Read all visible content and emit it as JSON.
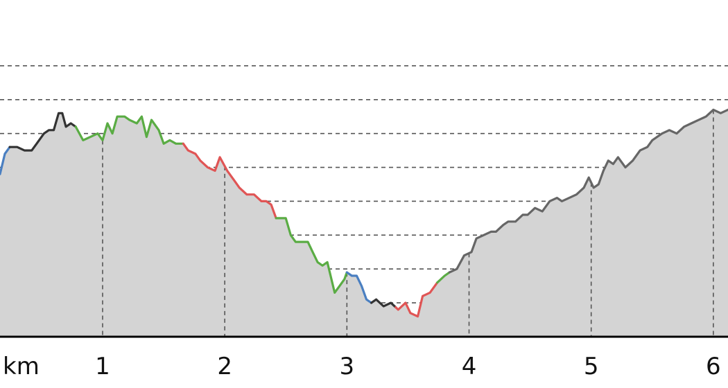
{
  "chart_data": {
    "type": "area",
    "xlabel": "km",
    "xticks": [
      1,
      2,
      3,
      4,
      5,
      6
    ],
    "xlim": [
      0.16,
      6.12
    ],
    "ylim": [
      0,
      8.1
    ],
    "grid": true,
    "colors": {
      "blue": "#4a7fc1",
      "black": "#333333",
      "green": "#5aac44",
      "red": "#e05555",
      "gray": "#666666",
      "fill": "#d4d4d4"
    },
    "profile": [
      [
        0.16,
        4.8
      ],
      [
        0.2,
        5.4
      ],
      [
        0.24,
        5.6
      ],
      [
        0.3,
        5.6
      ],
      [
        0.36,
        5.5
      ],
      [
        0.42,
        5.5
      ],
      [
        0.46,
        5.7
      ],
      [
        0.52,
        6.0
      ],
      [
        0.56,
        6.1
      ],
      [
        0.6,
        6.1
      ],
      [
        0.64,
        6.6
      ],
      [
        0.67,
        6.6
      ],
      [
        0.7,
        6.2
      ],
      [
        0.74,
        6.3
      ],
      [
        0.78,
        6.2
      ],
      [
        0.84,
        5.8
      ],
      [
        0.9,
        5.9
      ],
      [
        0.96,
        6.0
      ],
      [
        1.0,
        5.8
      ],
      [
        1.04,
        6.3
      ],
      [
        1.08,
        6.0
      ],
      [
        1.12,
        6.5
      ],
      [
        1.18,
        6.5
      ],
      [
        1.22,
        6.4
      ],
      [
        1.28,
        6.3
      ],
      [
        1.32,
        6.5
      ],
      [
        1.36,
        5.9
      ],
      [
        1.4,
        6.4
      ],
      [
        1.46,
        6.1
      ],
      [
        1.5,
        5.7
      ],
      [
        1.55,
        5.8
      ],
      [
        1.6,
        5.7
      ],
      [
        1.66,
        5.7
      ],
      [
        1.7,
        5.5
      ],
      [
        1.76,
        5.4
      ],
      [
        1.8,
        5.2
      ],
      [
        1.86,
        5.0
      ],
      [
        1.92,
        4.9
      ],
      [
        1.96,
        5.3
      ],
      [
        2.02,
        4.9
      ],
      [
        2.08,
        4.6
      ],
      [
        2.12,
        4.4
      ],
      [
        2.18,
        4.2
      ],
      [
        2.24,
        4.2
      ],
      [
        2.3,
        4.0
      ],
      [
        2.34,
        4.0
      ],
      [
        2.38,
        3.9
      ],
      [
        2.42,
        3.5
      ],
      [
        2.5,
        3.5
      ],
      [
        2.54,
        3.0
      ],
      [
        2.58,
        2.8
      ],
      [
        2.64,
        2.8
      ],
      [
        2.68,
        2.8
      ],
      [
        2.72,
        2.5
      ],
      [
        2.76,
        2.2
      ],
      [
        2.8,
        2.1
      ],
      [
        2.84,
        2.2
      ],
      [
        2.9,
        1.3
      ],
      [
        2.94,
        1.5
      ],
      [
        2.98,
        1.7
      ],
      [
        3.0,
        1.9
      ],
      [
        3.04,
        1.8
      ],
      [
        3.08,
        1.8
      ],
      [
        3.12,
        1.5
      ],
      [
        3.16,
        1.1
      ],
      [
        3.2,
        1.0
      ],
      [
        3.24,
        1.1
      ],
      [
        3.3,
        0.9
      ],
      [
        3.36,
        1.0
      ],
      [
        3.42,
        0.8
      ],
      [
        3.48,
        1.0
      ],
      [
        3.52,
        0.7
      ],
      [
        3.58,
        0.6
      ],
      [
        3.62,
        1.2
      ],
      [
        3.68,
        1.3
      ],
      [
        3.74,
        1.6
      ],
      [
        3.8,
        1.8
      ],
      [
        3.84,
        1.9
      ],
      [
        3.9,
        2.0
      ],
      [
        3.96,
        2.4
      ],
      [
        4.02,
        2.5
      ],
      [
        4.06,
        2.9
      ],
      [
        4.12,
        3.0
      ],
      [
        4.18,
        3.1
      ],
      [
        4.22,
        3.1
      ],
      [
        4.28,
        3.3
      ],
      [
        4.32,
        3.4
      ],
      [
        4.38,
        3.4
      ],
      [
        4.44,
        3.6
      ],
      [
        4.48,
        3.6
      ],
      [
        4.54,
        3.8
      ],
      [
        4.6,
        3.7
      ],
      [
        4.66,
        4.0
      ],
      [
        4.72,
        4.1
      ],
      [
        4.76,
        4.0
      ],
      [
        4.82,
        4.1
      ],
      [
        4.88,
        4.2
      ],
      [
        4.94,
        4.4
      ],
      [
        4.98,
        4.7
      ],
      [
        5.02,
        4.4
      ],
      [
        5.06,
        4.5
      ],
      [
        5.1,
        4.9
      ],
      [
        5.14,
        5.2
      ],
      [
        5.18,
        5.1
      ],
      [
        5.22,
        5.3
      ],
      [
        5.28,
        5.0
      ],
      [
        5.34,
        5.2
      ],
      [
        5.4,
        5.5
      ],
      [
        5.46,
        5.6
      ],
      [
        5.5,
        5.8
      ],
      [
        5.54,
        5.9
      ],
      [
        5.58,
        6.0
      ],
      [
        5.64,
        6.1
      ],
      [
        5.7,
        6.0
      ],
      [
        5.76,
        6.2
      ],
      [
        5.82,
        6.3
      ],
      [
        5.88,
        6.4
      ],
      [
        5.94,
        6.5
      ],
      [
        6.0,
        6.7
      ],
      [
        6.06,
        6.6
      ],
      [
        6.12,
        6.7
      ]
    ],
    "segments": [
      {
        "color": "blue",
        "from": 0.16,
        "to": 0.24
      },
      {
        "color": "black",
        "from": 0.24,
        "to": 0.78
      },
      {
        "color": "green",
        "from": 0.78,
        "to": 1.66
      },
      {
        "color": "red",
        "from": 1.66,
        "to": 2.42
      },
      {
        "color": "green",
        "from": 2.42,
        "to": 3.0
      },
      {
        "color": "blue",
        "from": 3.0,
        "to": 3.2
      },
      {
        "color": "black",
        "from": 3.2,
        "to": 3.4
      },
      {
        "color": "red",
        "from": 3.4,
        "to": 3.74
      },
      {
        "color": "green",
        "from": 3.74,
        "to": 3.84
      },
      {
        "color": "gray",
        "from": 3.84,
        "to": 6.12
      }
    ]
  }
}
